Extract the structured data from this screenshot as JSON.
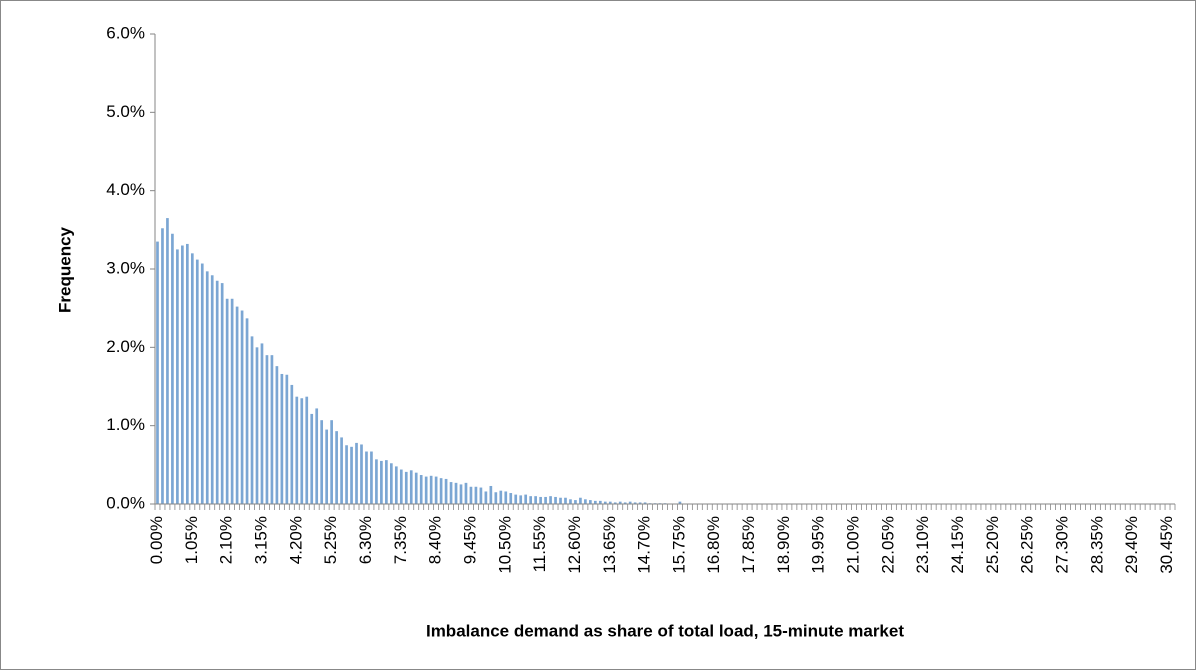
{
  "chart_data": {
    "type": "bar",
    "ylabel": "Frequency",
    "xlabel": "Imbalance demand as share of total load, 15-minute market",
    "color": "#7ba6d3",
    "ylim": [
      0,
      6
    ],
    "yticks": [
      {
        "value": 0,
        "label": "0.0%"
      },
      {
        "value": 1,
        "label": "1.0%"
      },
      {
        "value": 2,
        "label": "2.0%"
      },
      {
        "value": 3,
        "label": "3.0%"
      },
      {
        "value": 4,
        "label": "4.0%"
      },
      {
        "value": 5,
        "label": "5.0%"
      },
      {
        "value": 6,
        "label": "6.0%"
      }
    ],
    "categories": [
      "0.00%",
      null,
      null,
      null,
      null,
      null,
      null,
      "1.05%",
      null,
      null,
      null,
      null,
      null,
      null,
      "2.10%",
      null,
      null,
      null,
      null,
      null,
      null,
      "3.15%",
      null,
      null,
      null,
      null,
      null,
      null,
      "4.20%",
      null,
      null,
      null,
      null,
      null,
      null,
      "5.25%",
      null,
      null,
      null,
      null,
      null,
      null,
      "6.30%",
      null,
      null,
      null,
      null,
      null,
      null,
      "7.35%",
      null,
      null,
      null,
      null,
      null,
      null,
      "8.40%",
      null,
      null,
      null,
      null,
      null,
      null,
      "9.45%",
      null,
      null,
      null,
      null,
      null,
      null,
      "10.50%",
      null,
      null,
      null,
      null,
      null,
      null,
      "11.55%",
      null,
      null,
      null,
      null,
      null,
      null,
      "12.60%",
      null,
      null,
      null,
      null,
      null,
      null,
      "13.65%",
      null,
      null,
      null,
      null,
      null,
      null,
      "14.70%",
      null,
      null,
      null,
      null,
      null,
      null,
      "15.75%",
      null,
      null,
      null,
      null,
      null,
      null,
      "16.80%",
      null,
      null,
      null,
      null,
      null,
      null,
      "17.85%",
      null,
      null,
      null,
      null,
      null,
      null,
      "18.90%",
      null,
      null,
      null,
      null,
      null,
      null,
      "19.95%",
      null,
      null,
      null,
      null,
      null,
      null,
      "21.00%",
      null,
      null,
      null,
      null,
      null,
      null,
      "22.05%",
      null,
      null,
      null,
      null,
      null,
      null,
      "23.10%",
      null,
      null,
      null,
      null,
      null,
      null,
      "24.15%",
      null,
      null,
      null,
      null,
      null,
      null,
      "25.20%",
      null,
      null,
      null,
      null,
      null,
      null,
      "26.25%",
      null,
      null,
      null,
      null,
      null,
      null,
      "27.30%",
      null,
      null,
      null,
      null,
      null,
      null,
      "28.35%",
      null,
      null,
      null,
      null,
      null,
      null,
      "29.40%",
      null,
      null,
      null,
      null,
      null,
      null,
      "30.45%",
      null
    ],
    "values": [
      3.35,
      3.52,
      3.65,
      3.45,
      3.25,
      3.3,
      3.32,
      3.2,
      3.12,
      3.07,
      2.97,
      2.92,
      2.85,
      2.82,
      2.62,
      2.62,
      2.52,
      2.47,
      2.37,
      2.14,
      2.0,
      2.05,
      1.9,
      1.9,
      1.76,
      1.66,
      1.65,
      1.52,
      1.37,
      1.35,
      1.37,
      1.15,
      1.22,
      1.07,
      0.95,
      1.07,
      0.93,
      0.85,
      0.75,
      0.73,
      0.78,
      0.76,
      0.67,
      0.67,
      0.57,
      0.55,
      0.56,
      0.52,
      0.48,
      0.44,
      0.41,
      0.43,
      0.4,
      0.37,
      0.35,
      0.36,
      0.35,
      0.33,
      0.32,
      0.28,
      0.27,
      0.25,
      0.27,
      0.22,
      0.22,
      0.21,
      0.16,
      0.23,
      0.15,
      0.17,
      0.16,
      0.14,
      0.12,
      0.11,
      0.12,
      0.1,
      0.1,
      0.09,
      0.09,
      0.1,
      0.09,
      0.08,
      0.08,
      0.06,
      0.05,
      0.08,
      0.06,
      0.05,
      0.04,
      0.04,
      0.03,
      0.03,
      0.02,
      0.03,
      0.02,
      0.03,
      0.02,
      0.02,
      0.02,
      0.01,
      0.01,
      0.01,
      0.01,
      0,
      0,
      0.03,
      0,
      0,
      0,
      0,
      0,
      0,
      0,
      0,
      0,
      0,
      0,
      0,
      0,
      0,
      0,
      0,
      0,
      0,
      0,
      0,
      0,
      0,
      0,
      0,
      0,
      0,
      0,
      0,
      0,
      0,
      0,
      0,
      0,
      0,
      0,
      0,
      0,
      0,
      0,
      0,
      0,
      0,
      0,
      0,
      0,
      0,
      0,
      0,
      0,
      0,
      0,
      0,
      0,
      0,
      0,
      0,
      0,
      0,
      0,
      0,
      0,
      0,
      0,
      0,
      0,
      0,
      0,
      0,
      0,
      0,
      0,
      0,
      0,
      0,
      0,
      0,
      0,
      0,
      0,
      0,
      0,
      0,
      0,
      0,
      0,
      0,
      0,
      0,
      0,
      0,
      0,
      0,
      0,
      0,
      0,
      0,
      0,
      0,
      0
    ]
  }
}
